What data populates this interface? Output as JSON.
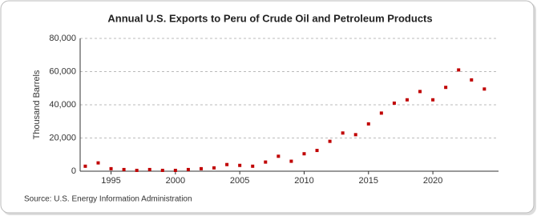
{
  "chart_data": {
    "type": "scatter",
    "title": "Annual U.S. Exports to Peru of Crude Oil and Petroleum Products",
    "ylabel": "Thousand Barrels",
    "source": "Source: U.S. Energy Information Administration",
    "color": "#c00000",
    "x": [
      1993,
      1994,
      1995,
      1996,
      1997,
      1998,
      1999,
      2000,
      2001,
      2002,
      2003,
      2004,
      2005,
      2006,
      2007,
      2008,
      2009,
      2010,
      2011,
      2012,
      2013,
      2014,
      2015,
      2016,
      2017,
      2018,
      2019,
      2020,
      2021,
      2022,
      2023,
      2024
    ],
    "values": [
      3000,
      5000,
      1500,
      1000,
      500,
      1000,
      500,
      500,
      1000,
      1500,
      2000,
      4000,
      3500,
      3000,
      5500,
      9000,
      6000,
      10500,
      12500,
      18000,
      23000,
      22000,
      28500,
      35000,
      41000,
      43000,
      48000,
      43000,
      50500,
      61000,
      55000,
      49500
    ],
    "xlim": [
      1992.6,
      2025.1
    ],
    "xticks": [
      1995,
      2000,
      2005,
      2010,
      2015,
      2020
    ],
    "ylim": [
      0,
      80000
    ],
    "yticks": [
      0,
      {
        "value": 20000,
        "label": "20,000"
      },
      {
        "value": 40000,
        "label": "40,000"
      },
      {
        "value": 60000,
        "label": "60,000"
      },
      {
        "value": 80000,
        "label": "80,000"
      }
    ],
    "grid": true
  }
}
